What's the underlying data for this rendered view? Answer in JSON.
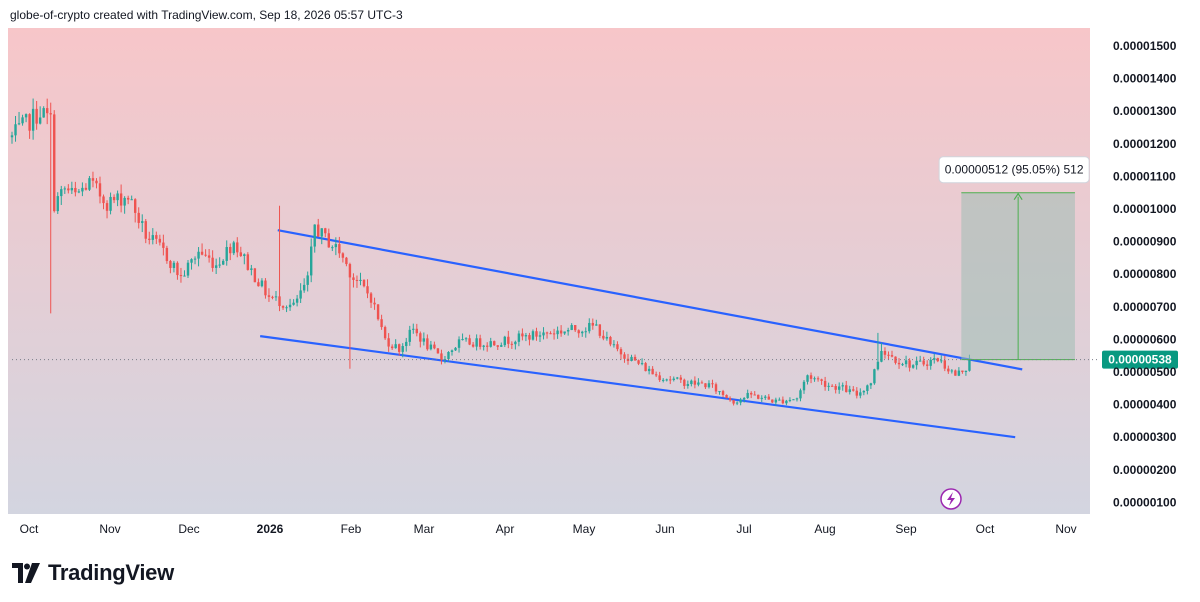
{
  "header": {
    "attribution": "globe-of-crypto created with TradingView.com, Sep 18, 2026 05:57 UTC-3"
  },
  "brand": {
    "name": "TradingView"
  },
  "colors": {
    "up": "#26a69a",
    "down": "#ef5350",
    "channel": "#2962ff",
    "bg_top": "#f7c6c9",
    "bg_bottom": "#d3d5e0",
    "price_label": "#089981",
    "measure_fill": "#9fbdb4",
    "measure_line": "#4caf50",
    "flash": "#9c27b0"
  },
  "chart_data": {
    "type": "candlestick",
    "price_scale": "linear",
    "ylim": [
      1e-07,
      1.55e-05
    ],
    "y_ticks": [
      "0.00001500",
      "0.00001400",
      "0.00001300",
      "0.00001200",
      "0.00001100",
      "0.00001000",
      "0.00000900",
      "0.00000800",
      "0.00000700",
      "0.00000600",
      "0.00000500",
      "0.00000400",
      "0.00000300",
      "0.00000200",
      "0.00000100"
    ],
    "x_ticks": [
      "Oct",
      "Nov",
      "Dec",
      "2026",
      "Feb",
      "Mar",
      "Apr",
      "May",
      "Jun",
      "Jul",
      "Aug",
      "Sep",
      "Oct",
      "Nov"
    ],
    "bold_x_tick": "2026",
    "current_price": {
      "label": "0.00000538",
      "value": 5.38e-06
    },
    "price_path": [
      [
        0,
        1.22e-05
      ],
      [
        8,
        1.3e-05
      ],
      [
        11,
        1.27e-05
      ],
      [
        11.5,
        1.01e-05
      ],
      [
        15,
        1.06e-05
      ],
      [
        18,
        1.04e-05
      ],
      [
        22,
        1.08e-05
      ],
      [
        27,
        1.02e-05
      ],
      [
        33,
        1.04e-05
      ],
      [
        38,
        9.2e-06
      ],
      [
        43,
        8.7e-06
      ],
      [
        48,
        7.9e-06
      ],
      [
        53,
        8.7e-06
      ],
      [
        58,
        8.3e-06
      ],
      [
        63,
        9e-06
      ],
      [
        68,
        8.1e-06
      ],
      [
        73,
        7.3e-06
      ],
      [
        80,
        7e-06
      ],
      [
        84,
        7.8e-06
      ],
      [
        86,
        9.5e-06
      ],
      [
        88,
        9.2e-06
      ],
      [
        93,
        8.7e-06
      ],
      [
        97,
        7.9e-06
      ],
      [
        102,
        7.3e-06
      ],
      [
        106,
        6e-06
      ],
      [
        110,
        5.7e-06
      ],
      [
        114,
        6.3e-06
      ],
      [
        118,
        5.8e-06
      ],
      [
        122,
        5.4e-06
      ],
      [
        127,
        5.9e-06
      ],
      [
        137,
        5.9e-06
      ],
      [
        152,
        6.2e-06
      ],
      [
        166,
        6.4e-06
      ],
      [
        170,
        5.8e-06
      ],
      [
        176,
        5.4e-06
      ],
      [
        183,
        4.9e-06
      ],
      [
        190,
        4.7e-06
      ],
      [
        198,
        4.6e-06
      ],
      [
        205,
        4.1e-06
      ],
      [
        210,
        4.3e-06
      ],
      [
        217,
        4.1e-06
      ],
      [
        223,
        4.2e-06
      ],
      [
        226,
        4.9e-06
      ],
      [
        232,
        4.6e-06
      ],
      [
        236,
        4.5e-06
      ],
      [
        240,
        4.3e-06
      ],
      [
        244,
        4.7e-06
      ],
      [
        247,
        5.7e-06
      ],
      [
        251,
        5.4e-06
      ],
      [
        256,
        5.2e-06
      ],
      [
        263,
        5.4e-06
      ],
      [
        268,
        4.9e-06
      ],
      [
        272,
        5.2e-06
      ]
    ],
    "volatility": 0.05,
    "channel": {
      "upper": [
        [
          75.5,
          9.35e-06
        ],
        [
          287,
          5.08e-06
        ]
      ],
      "lower": [
        [
          70.5,
          6.1e-06
        ],
        [
          285,
          3e-06
        ]
      ]
    },
    "measurement": {
      "label": "0.00000512 (95.05%) 512",
      "from_price": 5.38e-06,
      "to_price": 1.05e-05,
      "start_day": 266,
      "end_day": 298
    }
  }
}
